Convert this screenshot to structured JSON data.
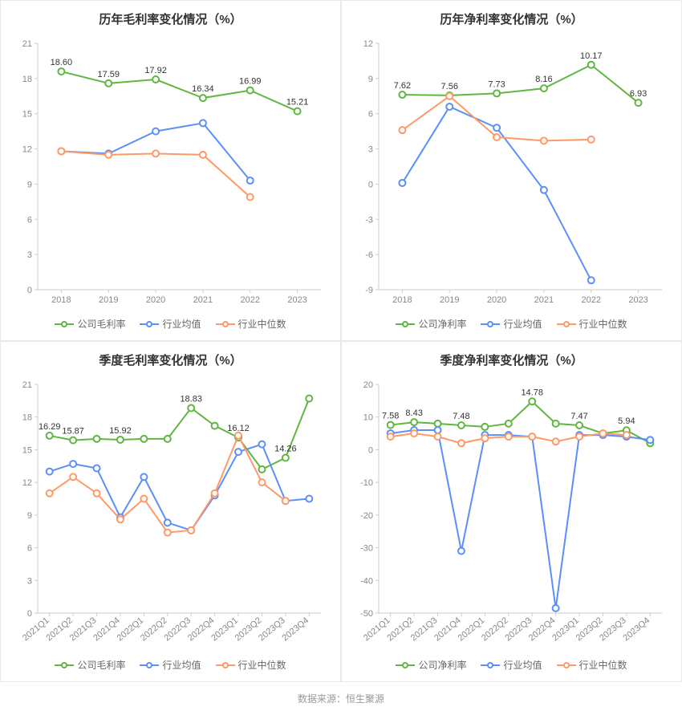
{
  "footer": "数据来源：恒生聚源",
  "colors": {
    "company": "#5fb641",
    "industry_avg": "#5b8ff9",
    "industry_median": "#ff9966",
    "axis": "#cccccc",
    "text": "#888888",
    "title": "#333333",
    "bg": "#ffffff"
  },
  "charts": [
    {
      "id": "chart1",
      "title": "历年毛利率变化情况（%）",
      "type": "line",
      "rotate_x": false,
      "ylim": [
        0,
        21
      ],
      "ytick_step": 3,
      "categories": [
        "2018",
        "2019",
        "2020",
        "2021",
        "2022",
        "2023"
      ],
      "series": [
        {
          "name": "公司毛利率",
          "color_key": "company",
          "values": [
            18.6,
            17.59,
            17.92,
            16.34,
            16.99,
            15.21
          ],
          "show_labels": true
        },
        {
          "name": "行业均值",
          "color_key": "industry_avg",
          "values": [
            11.8,
            11.6,
            13.5,
            14.2,
            9.3,
            null
          ],
          "show_labels": false
        },
        {
          "name": "行业中位数",
          "color_key": "industry_median",
          "values": [
            11.8,
            11.5,
            11.6,
            11.5,
            7.9,
            null
          ],
          "show_labels": false
        }
      ],
      "legend": [
        {
          "label": "公司毛利率",
          "color_key": "company"
        },
        {
          "label": "行业均值",
          "color_key": "industry_avg"
        },
        {
          "label": "行业中位数",
          "color_key": "industry_median"
        }
      ]
    },
    {
      "id": "chart2",
      "title": "历年净利率变化情况（%）",
      "type": "line",
      "rotate_x": false,
      "ylim": [
        -9,
        12
      ],
      "ytick_step": 3,
      "categories": [
        "2018",
        "2019",
        "2020",
        "2021",
        "2022",
        "2023"
      ],
      "series": [
        {
          "name": "公司净利率",
          "color_key": "company",
          "values": [
            7.62,
            7.56,
            7.73,
            8.16,
            10.17,
            6.93
          ],
          "show_labels": true
        },
        {
          "name": "行业均值",
          "color_key": "industry_avg",
          "values": [
            0.1,
            6.6,
            4.8,
            -0.5,
            -8.2,
            null
          ],
          "show_labels": false
        },
        {
          "name": "行业中位数",
          "color_key": "industry_median",
          "values": [
            4.6,
            7.5,
            4.0,
            3.7,
            3.8,
            null
          ],
          "show_labels": false
        }
      ],
      "legend": [
        {
          "label": "公司净利率",
          "color_key": "company"
        },
        {
          "label": "行业均值",
          "color_key": "industry_avg"
        },
        {
          "label": "行业中位数",
          "color_key": "industry_median"
        }
      ]
    },
    {
      "id": "chart3",
      "title": "季度毛利率变化情况（%）",
      "type": "line",
      "rotate_x": true,
      "ylim": [
        0,
        21
      ],
      "ytick_step": 3,
      "categories": [
        "2021Q1",
        "2021Q2",
        "2021Q3",
        "2021Q4",
        "2022Q1",
        "2022Q2",
        "2022Q3",
        "2022Q4",
        "2023Q1",
        "2023Q2",
        "2023Q3",
        "2023Q4"
      ],
      "series": [
        {
          "name": "公司毛利率",
          "color_key": "company",
          "values": [
            16.29,
            15.87,
            16.0,
            15.92,
            16.0,
            16.0,
            18.83,
            17.2,
            16.12,
            13.2,
            14.26,
            19.7
          ],
          "show_labels": true,
          "label_indices": [
            0,
            1,
            3,
            6,
            8,
            10
          ]
        },
        {
          "name": "行业均值",
          "color_key": "industry_avg",
          "values": [
            13.0,
            13.7,
            13.3,
            8.8,
            12.5,
            8.3,
            7.6,
            10.8,
            14.8,
            15.5,
            10.3,
            10.5
          ],
          "show_labels": false
        },
        {
          "name": "行业中位数",
          "color_key": "industry_median",
          "values": [
            11.0,
            12.5,
            11.0,
            8.6,
            10.5,
            7.4,
            7.6,
            11.0,
            16.3,
            12.0,
            10.3,
            null
          ],
          "show_labels": false
        }
      ],
      "legend": [
        {
          "label": "公司毛利率",
          "color_key": "company"
        },
        {
          "label": "行业均值",
          "color_key": "industry_avg"
        },
        {
          "label": "行业中位数",
          "color_key": "industry_median"
        }
      ]
    },
    {
      "id": "chart4",
      "title": "季度净利率变化情况（%）",
      "type": "line",
      "rotate_x": true,
      "ylim": [
        -50,
        20
      ],
      "ytick_step": 10,
      "categories": [
        "2021Q1",
        "2021Q2",
        "2021Q3",
        "2021Q4",
        "2022Q1",
        "2022Q2",
        "2022Q3",
        "2022Q4",
        "2023Q1",
        "2023Q2",
        "2023Q3",
        "2023Q4"
      ],
      "series": [
        {
          "name": "公司净利率",
          "color_key": "company",
          "values": [
            7.58,
            8.43,
            8.0,
            7.48,
            7.0,
            8.0,
            14.78,
            8.0,
            7.47,
            5.0,
            5.94,
            2.0
          ],
          "show_labels": true,
          "label_indices": [
            0,
            1,
            3,
            6,
            8,
            10
          ]
        },
        {
          "name": "行业均值",
          "color_key": "industry_avg",
          "values": [
            5.0,
            6.0,
            6.0,
            -31.0,
            4.5,
            4.5,
            4.0,
            -48.5,
            4.5,
            4.5,
            4.0,
            3.0
          ],
          "show_labels": false
        },
        {
          "name": "行业中位数",
          "color_key": "industry_median",
          "values": [
            4.0,
            5.0,
            4.0,
            2.0,
            3.5,
            4.0,
            4.0,
            2.5,
            4.0,
            5.0,
            4.5,
            null
          ],
          "show_labels": false
        }
      ],
      "legend": [
        {
          "label": "公司净利率",
          "color_key": "company"
        },
        {
          "label": "行业均值",
          "color_key": "industry_avg"
        },
        {
          "label": "行业中位数",
          "color_key": "industry_median"
        }
      ]
    }
  ]
}
